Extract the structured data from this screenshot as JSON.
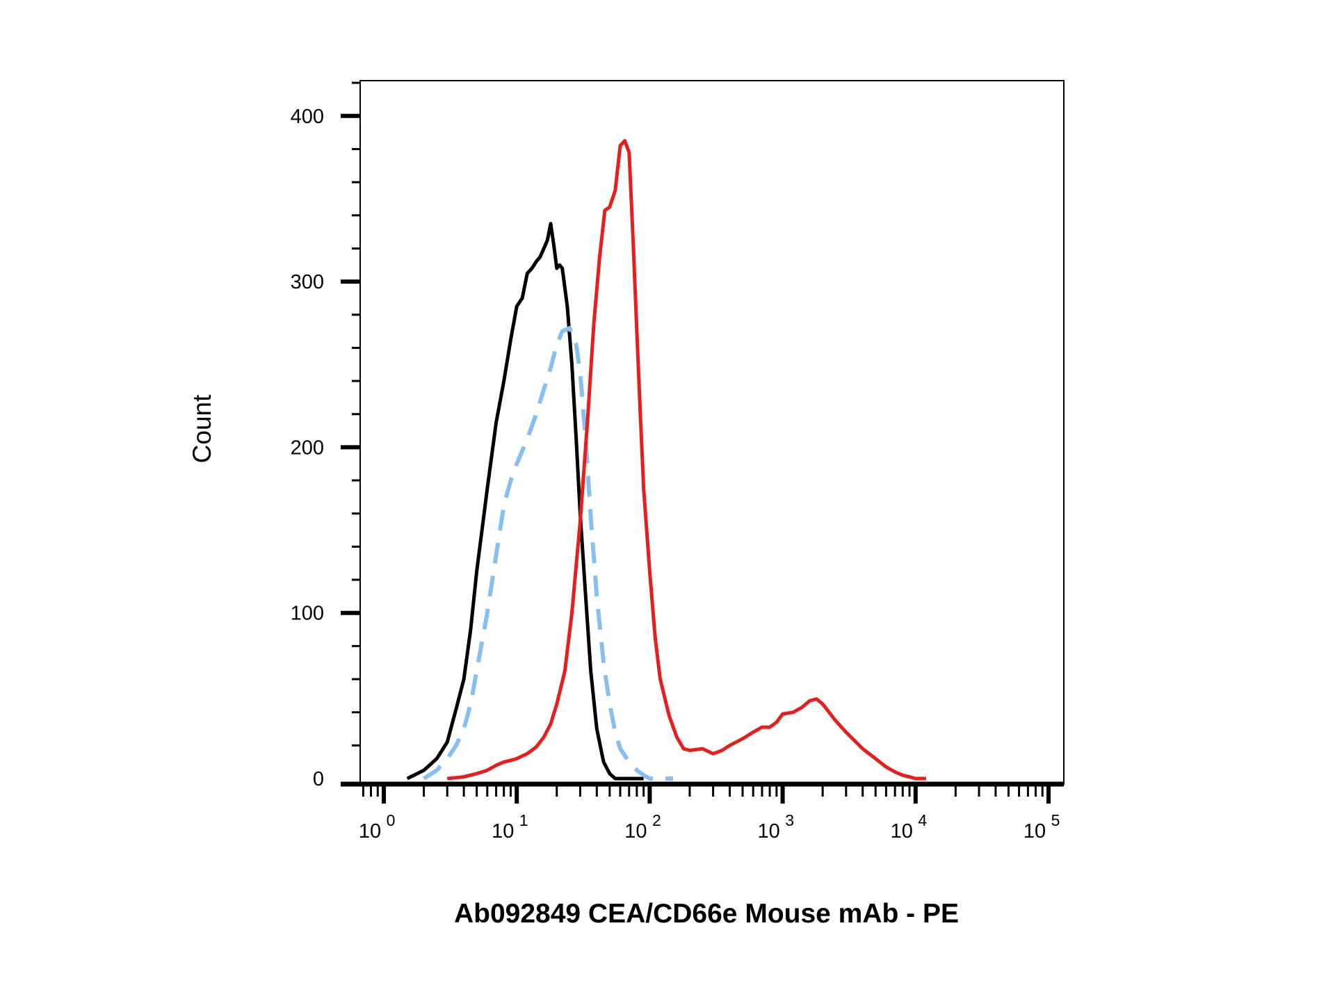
{
  "chart_data": {
    "type": "line",
    "title": "",
    "xlabel": "Ab092849 CEA/CD66e Mouse mAb - PE",
    "ylabel": "Count",
    "x_scale": "log",
    "xlim": [
      0.7,
      150000
    ],
    "ylim": [
      0,
      420
    ],
    "y_ticks": [
      0,
      100,
      200,
      300,
      400
    ],
    "y_tick_labels": [
      "0",
      "100",
      "200",
      "300",
      "400"
    ],
    "x_ticks": [
      {
        "value": 1,
        "base": "10",
        "exp": "0"
      },
      {
        "value": 10,
        "base": "10",
        "exp": "1"
      },
      {
        "value": 100,
        "base": "10",
        "exp": "2"
      },
      {
        "value": 1000,
        "base": "10",
        "exp": "3"
      },
      {
        "value": 10000,
        "base": "10",
        "exp": "4"
      },
      {
        "value": 100000,
        "base": "10",
        "exp": "5"
      }
    ],
    "grid": false,
    "series": [
      {
        "color": "#000000",
        "style": "solid",
        "x": [
          1.5,
          2,
          2.5,
          3,
          3.5,
          4,
          4.5,
          5,
          6,
          7,
          8,
          9,
          10,
          11,
          12,
          13,
          14,
          15,
          16,
          17,
          18,
          19,
          20,
          21,
          22,
          24,
          26,
          28,
          30,
          33,
          36,
          40,
          45,
          50,
          55,
          60,
          70,
          80,
          90
        ],
        "y": [
          0,
          5,
          12,
          22,
          42,
          60,
          90,
          125,
          175,
          215,
          240,
          265,
          285,
          290,
          305,
          308,
          312,
          315,
          320,
          325,
          335,
          322,
          308,
          310,
          308,
          285,
          250,
          205,
          160,
          110,
          65,
          30,
          10,
          3,
          0,
          0,
          0,
          0,
          0
        ]
      },
      {
        "color": "#88bfee",
        "style": "dashed",
        "x": [
          2,
          2.5,
          3,
          3.5,
          4,
          4.5,
          5,
          6,
          7,
          8,
          9,
          10,
          12,
          14,
          16,
          18,
          20,
          22,
          25,
          28,
          30,
          33,
          36,
          40,
          45,
          50,
          55,
          60,
          70,
          80,
          90,
          100,
          120,
          150
        ],
        "y": [
          0,
          5,
          12,
          20,
          30,
          45,
          65,
          100,
          135,
          165,
          180,
          190,
          205,
          220,
          235,
          248,
          262,
          270,
          272,
          262,
          245,
          205,
          158,
          110,
          70,
          45,
          28,
          18,
          10,
          5,
          2,
          0,
          0,
          0
        ]
      },
      {
        "color": "#e61e1e",
        "style": "solid",
        "x": [
          3,
          4,
          5,
          6,
          7,
          8,
          9,
          10,
          12,
          14,
          16,
          18,
          20,
          23,
          26,
          30,
          34,
          38,
          42,
          46,
          50,
          55,
          60,
          65,
          70,
          75,
          80,
          85,
          90,
          100,
          110,
          120,
          140,
          160,
          180,
          200,
          250,
          300,
          350,
          400,
          500,
          600,
          700,
          800,
          900,
          1000,
          1200,
          1400,
          1600,
          1800,
          2000,
          2500,
          3000,
          4000,
          5000,
          6000,
          7000,
          8000,
          9000,
          10000,
          12000
        ],
        "y": [
          0,
          1,
          3,
          5,
          8,
          10,
          11,
          12,
          15,
          19,
          25,
          33,
          45,
          65,
          100,
          155,
          215,
          275,
          315,
          343,
          345,
          355,
          382,
          385,
          378,
          325,
          270,
          220,
          175,
          125,
          85,
          60,
          38,
          25,
          18,
          17,
          18,
          15,
          17,
          20,
          24,
          28,
          31,
          31,
          34,
          39,
          40,
          43,
          47,
          48,
          45,
          35,
          28,
          18,
          12,
          7,
          4,
          2,
          1,
          0,
          0
        ]
      }
    ]
  }
}
